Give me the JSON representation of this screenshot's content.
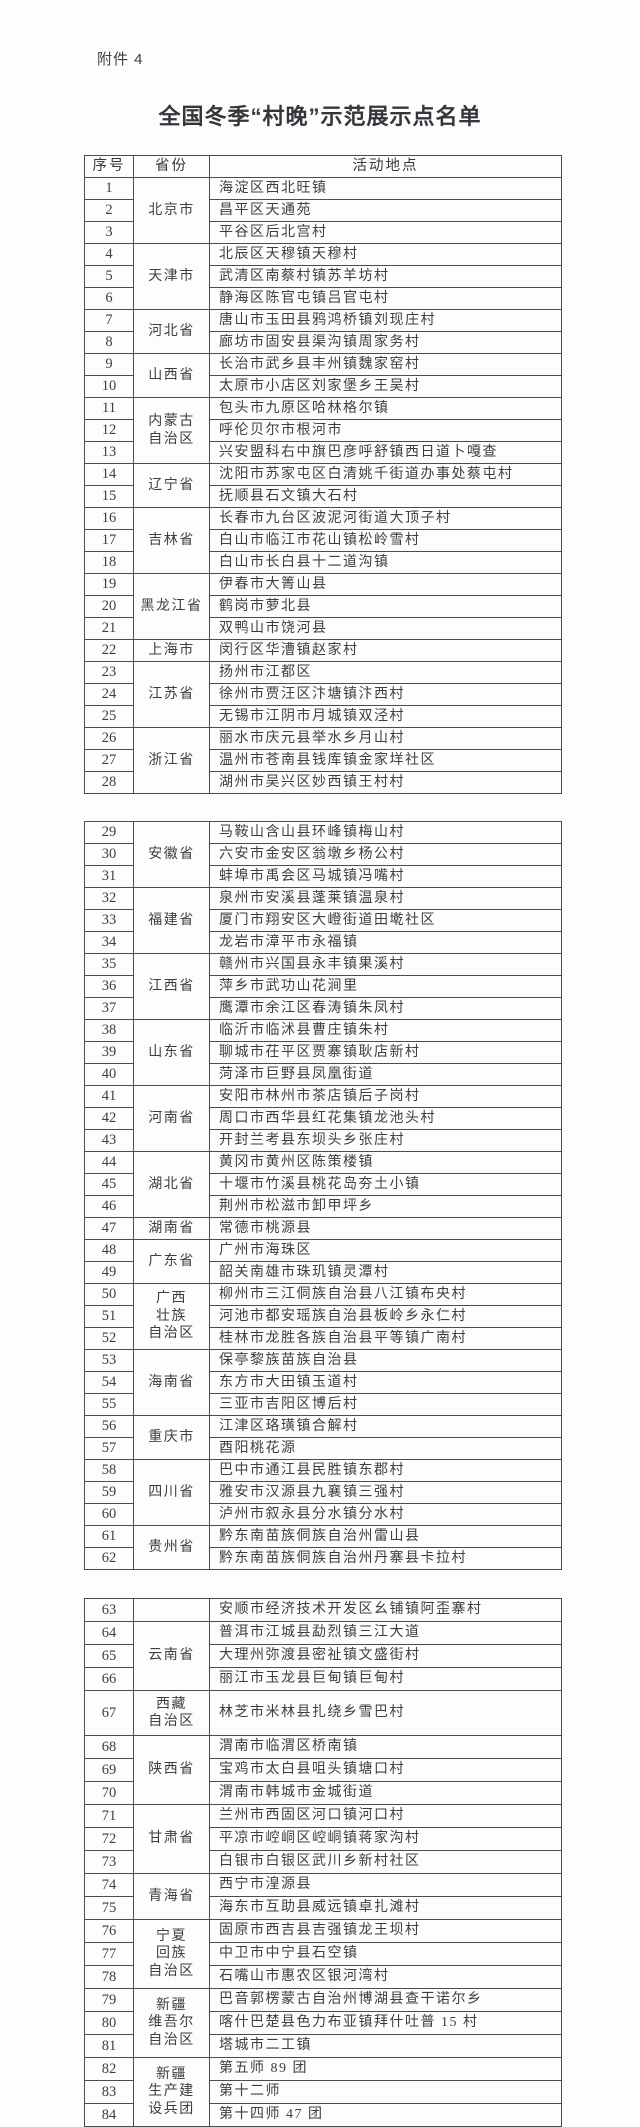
{
  "page": {
    "attachment_label": "附件 4",
    "title": "全国冬季“村晚”示范展示点名单"
  },
  "table": {
    "headers": [
      "序号",
      "省份",
      "活动地点"
    ],
    "segments": [
      {
        "groups": [
          {
            "province": "北京市",
            "rows": [
              {
                "no": "1",
                "location": "海淀区西北旺镇"
              },
              {
                "no": "2",
                "location": "昌平区天通苑"
              },
              {
                "no": "3",
                "location": "平谷区后北宫村"
              }
            ]
          },
          {
            "province": "天津市",
            "rows": [
              {
                "no": "4",
                "location": "北辰区天穆镇天穆村"
              },
              {
                "no": "5",
                "location": "武清区南蔡村镇苏羊坊村"
              },
              {
                "no": "6",
                "location": "静海区陈官屯镇吕官屯村"
              }
            ]
          },
          {
            "province": "河北省",
            "rows": [
              {
                "no": "7",
                "location": "唐山市玉田县鸦鸿桥镇刘现庄村"
              },
              {
                "no": "8",
                "location": "廊坊市固安县渠沟镇周家务村"
              }
            ]
          },
          {
            "province": "山西省",
            "rows": [
              {
                "no": "9",
                "location": "长治市武乡县丰州镇魏家窑村"
              },
              {
                "no": "10",
                "location": "太原市小店区刘家堡乡王吴村"
              }
            ]
          },
          {
            "province": "内蒙古\n自治区",
            "rows": [
              {
                "no": "11",
                "location": "包头市九原区哈林格尔镇"
              },
              {
                "no": "12",
                "location": "呼伦贝尔市根河市"
              },
              {
                "no": "13",
                "location": "兴安盟科右中旗巴彦呼舒镇西日道卜嘎查"
              }
            ]
          },
          {
            "province": "辽宁省",
            "rows": [
              {
                "no": "14",
                "location": "沈阳市苏家屯区白清姚千街道办事处蔡屯村"
              },
              {
                "no": "15",
                "location": "抚顺县石文镇大石村"
              }
            ]
          },
          {
            "province": "吉林省",
            "rows": [
              {
                "no": "16",
                "location": "长春市九台区波泥河街道大顶子村"
              },
              {
                "no": "17",
                "location": "白山市临江市花山镇松岭雪村"
              },
              {
                "no": "18",
                "location": "白山市长白县十二道沟镇"
              }
            ]
          },
          {
            "province": "黑龙江省",
            "rows": [
              {
                "no": "19",
                "location": "伊春市大箐山县"
              },
              {
                "no": "20",
                "location": "鹤岗市萝北县"
              },
              {
                "no": "21",
                "location": "双鸭山市饶河县"
              }
            ]
          },
          {
            "province": "上海市",
            "rows": [
              {
                "no": "22",
                "location": "闵行区华漕镇赵家村"
              }
            ]
          },
          {
            "province": "江苏省",
            "rows": [
              {
                "no": "23",
                "location": "扬州市江都区"
              },
              {
                "no": "24",
                "location": "徐州市贾汪区汴塘镇汴西村"
              },
              {
                "no": "25",
                "location": "无锡市江阴市月城镇双泾村"
              }
            ]
          },
          {
            "province": "浙江省",
            "rows": [
              {
                "no": "26",
                "location": "丽水市庆元县举水乡月山村"
              },
              {
                "no": "27",
                "location": "温州市苍南县钱库镇金家垟社区"
              },
              {
                "no": "28",
                "location": "湖州市吴兴区妙西镇王村村"
              }
            ]
          }
        ]
      },
      {
        "groups": [
          {
            "province": "安徽省",
            "rows": [
              {
                "no": "29",
                "location": "马鞍山含山县环峰镇梅山村"
              },
              {
                "no": "30",
                "location": "六安市金安区翁墩乡杨公村"
              },
              {
                "no": "31",
                "location": "蚌埠市禹会区马城镇冯嘴村"
              }
            ]
          },
          {
            "province": "福建省",
            "rows": [
              {
                "no": "32",
                "location": "泉州市安溪县蓬莱镇温泉村"
              },
              {
                "no": "33",
                "location": "厦门市翔安区大嶝街道田墘社区"
              },
              {
                "no": "34",
                "location": "龙岩市漳平市永福镇"
              }
            ]
          },
          {
            "province": "江西省",
            "rows": [
              {
                "no": "35",
                "location": "赣州市兴国县永丰镇果溪村"
              },
              {
                "no": "36",
                "location": "萍乡市武功山花涧里"
              },
              {
                "no": "37",
                "location": "鹰潭市余江区春涛镇朱凤村"
              }
            ]
          },
          {
            "province": "山东省",
            "rows": [
              {
                "no": "38",
                "location": "临沂市临沭县曹庄镇朱村"
              },
              {
                "no": "39",
                "location": "聊城市茌平区贾寨镇耿店新村"
              },
              {
                "no": "40",
                "location": "菏泽市巨野县凤凰街道"
              }
            ]
          },
          {
            "province": "河南省",
            "rows": [
              {
                "no": "41",
                "location": "安阳市林州市茶店镇后子岗村"
              },
              {
                "no": "42",
                "location": "周口市西华县红花集镇龙池头村"
              },
              {
                "no": "43",
                "location": "开封兰考县东坝头乡张庄村"
              }
            ]
          },
          {
            "province": "湖北省",
            "rows": [
              {
                "no": "44",
                "location": "黄冈市黄州区陈策楼镇"
              },
              {
                "no": "45",
                "location": "十堰市竹溪县桃花岛夯土小镇"
              },
              {
                "no": "46",
                "location": "荆州市松滋市卸甲坪乡"
              }
            ]
          },
          {
            "province": "湖南省",
            "rows": [
              {
                "no": "47",
                "location": "常德市桃源县"
              }
            ]
          },
          {
            "province": "广东省",
            "rows": [
              {
                "no": "48",
                "location": "广州市海珠区"
              },
              {
                "no": "49",
                "location": "韶关南雄市珠玑镇灵潭村"
              }
            ]
          },
          {
            "province": "广西\n壮族\n自治区",
            "rows": [
              {
                "no": "50",
                "location": "柳州市三江侗族自治县八江镇布央村"
              },
              {
                "no": "51",
                "location": "河池市都安瑶族自治县板岭乡永仁村"
              },
              {
                "no": "52",
                "location": "桂林市龙胜各族自治县平等镇广南村"
              }
            ]
          },
          {
            "province": "海南省",
            "rows": [
              {
                "no": "53",
                "location": "保亭黎族苗族自治县"
              },
              {
                "no": "54",
                "location": "东方市大田镇玉道村"
              },
              {
                "no": "55",
                "location": "三亚市吉阳区博后村"
              }
            ]
          },
          {
            "province": "重庆市",
            "rows": [
              {
                "no": "56",
                "location": "江津区珞璜镇合解村"
              },
              {
                "no": "57",
                "location": "酉阳桃花源"
              }
            ]
          },
          {
            "province": "四川省",
            "rows": [
              {
                "no": "58",
                "location": "巴中市通江县民胜镇东郡村"
              },
              {
                "no": "59",
                "location": "雅安市汉源县九襄镇三强村"
              },
              {
                "no": "60",
                "location": "泸州市叙永县分水镇分水村"
              }
            ]
          },
          {
            "province": "贵州省",
            "rows": [
              {
                "no": "61",
                "location": "黔东南苗族侗族自治州雷山县"
              },
              {
                "no": "62",
                "location": "黔东南苗族侗族自治州丹寨县卡拉村"
              }
            ]
          }
        ]
      },
      {
        "groups": [
          {
            "province": "",
            "rows": [
              {
                "no": "63",
                "location": "安顺市经济技术开发区幺铺镇阿歪寨村"
              }
            ]
          },
          {
            "province": "云南省",
            "rows": [
              {
                "no": "64",
                "location": "普洱市江城县勐烈镇三江大道"
              },
              {
                "no": "65",
                "location": "大理州弥渡县密祉镇文盛街村"
              },
              {
                "no": "66",
                "location": "丽江市玉龙县巨甸镇巨甸村"
              }
            ]
          },
          {
            "province": "西藏\n自治区",
            "rows": [
              {
                "no": "67",
                "location": "林芝市米林县扎绕乡雪巴村",
                "tall": true
              }
            ]
          },
          {
            "province": "陕西省",
            "rows": [
              {
                "no": "68",
                "location": "渭南市临渭区桥南镇"
              },
              {
                "no": "69",
                "location": "宝鸡市太白县咀头镇塘口村"
              },
              {
                "no": "70",
                "location": "渭南市韩城市金城街道"
              }
            ]
          },
          {
            "province": "甘肃省",
            "rows": [
              {
                "no": "71",
                "location": "兰州市西固区河口镇河口村"
              },
              {
                "no": "72",
                "location": "平凉市崆峒区崆峒镇蒋家沟村"
              },
              {
                "no": "73",
                "location": "白银市白银区武川乡新村社区"
              }
            ]
          },
          {
            "province": "青海省",
            "rows": [
              {
                "no": "74",
                "location": "西宁市湟源县"
              },
              {
                "no": "75",
                "location": "海东市互助县威远镇卓扎滩村"
              }
            ]
          },
          {
            "province": "宁夏\n回族\n自治区",
            "rows": [
              {
                "no": "76",
                "location": "固原市西吉县吉强镇龙王坝村"
              },
              {
                "no": "77",
                "location": "中卫市中宁县石空镇"
              },
              {
                "no": "78",
                "location": "石嘴山市惠农区银河湾村"
              }
            ]
          },
          {
            "province": "新疆\n维吾尔\n自治区",
            "rows": [
              {
                "no": "79",
                "location": "巴音郭楞蒙古自治州博湖县查干诺尔乡"
              },
              {
                "no": "80",
                "location": "喀什巴楚县色力布亚镇拜什吐普 15 村"
              },
              {
                "no": "81",
                "location": "塔城市二工镇"
              }
            ]
          },
          {
            "province": "新疆\n生产建\n设兵团",
            "rows": [
              {
                "no": "82",
                "location": "第五师 89 团"
              },
              {
                "no": "83",
                "location": "第十二师"
              },
              {
                "no": "84",
                "location": "第十四师 47 团"
              }
            ]
          }
        ]
      }
    ]
  }
}
